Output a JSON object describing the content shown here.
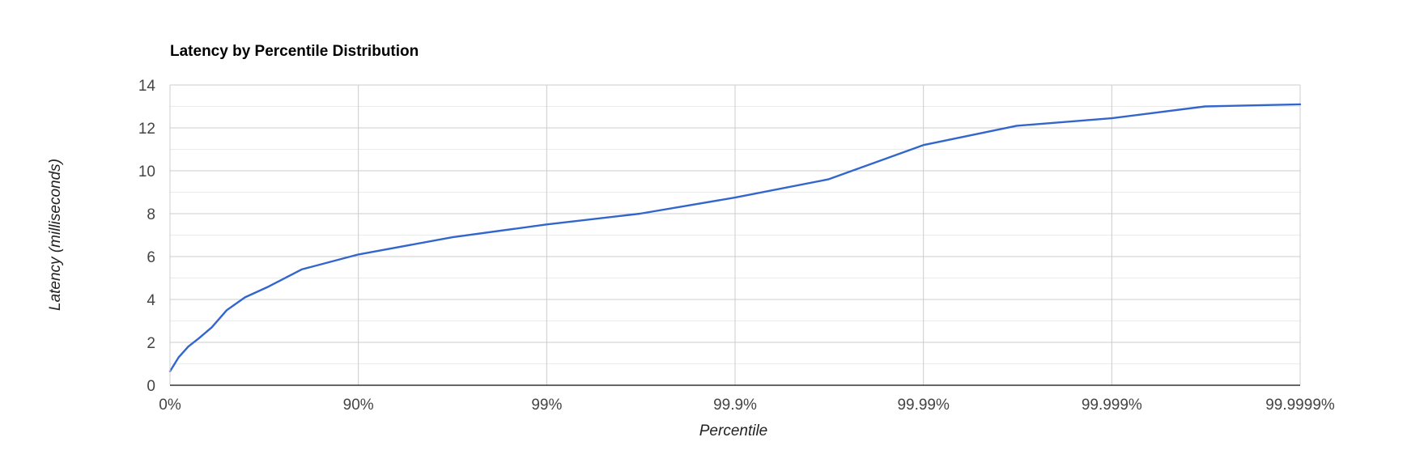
{
  "chart_data": {
    "type": "line",
    "title": "Latency by Percentile Distribution",
    "xlabel": "Percentile",
    "ylabel": "Latency (milliseconds)",
    "x_scale": "nines (log of 1/(1-p))",
    "x_tick_labels": [
      "0%",
      "90%",
      "99%",
      "99.9%",
      "99.99%",
      "99.999%",
      "99.9999%"
    ],
    "y_ticks": [
      0,
      2,
      4,
      6,
      8,
      10,
      12,
      14
    ],
    "ylim": [
      0,
      14
    ],
    "grid": true,
    "legend": "none",
    "colors": {
      "series": "#3366cc",
      "grid_major": "#cccccc",
      "grid_minor": "#ebebeb",
      "baseline": "#333333"
    },
    "series": [
      {
        "x": [
          "0%",
          "10%",
          "20%",
          "30%",
          "40%",
          "50%",
          "60%",
          "70%",
          "80%",
          "90%",
          "96.84%",
          "99%",
          "99.68%",
          "99.9%",
          "99.968%",
          "99.99%",
          "99.9968%",
          "99.999%",
          "99.99968%",
          "99.9999%"
        ],
        "values": [
          0.65,
          1.3,
          1.8,
          2.2,
          2.7,
          3.5,
          4.1,
          4.6,
          5.4,
          6.1,
          6.9,
          7.5,
          8.0,
          8.75,
          9.6,
          11.2,
          12.1,
          12.45,
          13.0,
          13.1
        ]
      }
    ]
  }
}
